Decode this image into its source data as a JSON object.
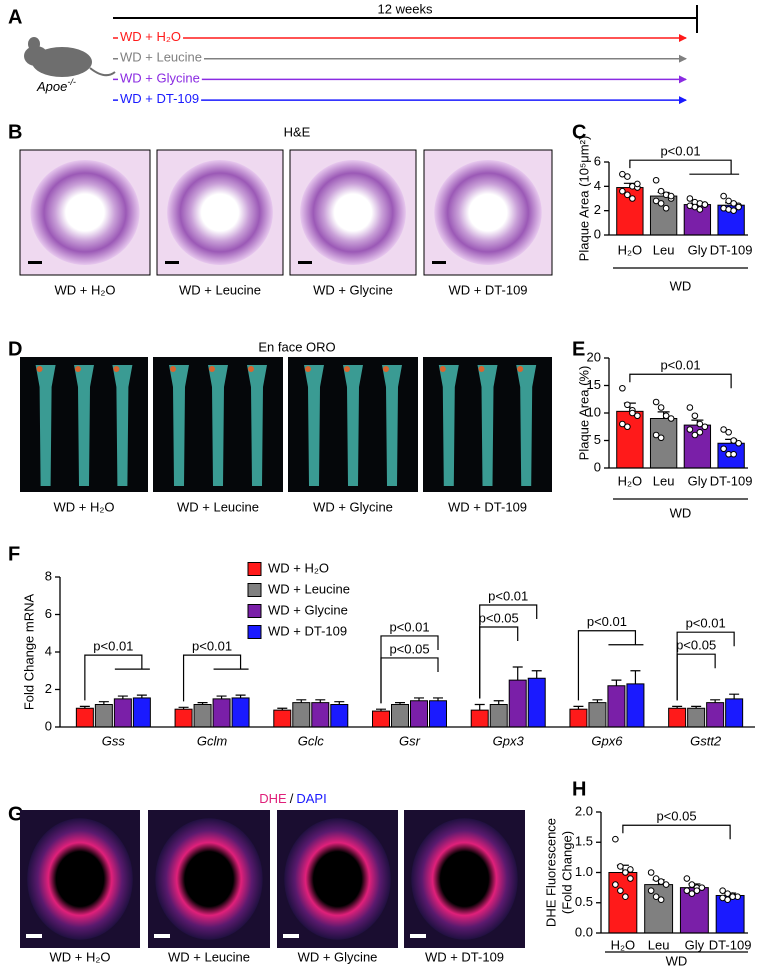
{
  "figure": {
    "panel_labels": [
      "A",
      "B",
      "C",
      "D",
      "E",
      "F",
      "G",
      "H"
    ],
    "timeline": {
      "duration": "12 weeks",
      "model": "Apoe",
      "model_sup": "-/-",
      "groups": [
        {
          "name": "WD + H₂O",
          "color": "#ff1a1a"
        },
        {
          "name": "WD + Leucine",
          "color": "#808080"
        },
        {
          "name": "WD + Glycine",
          "color": "#8a2be2"
        },
        {
          "name": "WD + DT-109",
          "color": "#1a1aff"
        }
      ]
    },
    "he": {
      "title": "H&E",
      "captions": [
        "WD + H₂O",
        "WD + Leucine",
        "WD + Glycine",
        "WD + DT-109"
      ]
    },
    "oro": {
      "title": "En face ORO",
      "captions": [
        "WD + H₂O",
        "WD + Leucine",
        "WD + Glycine",
        "WD + DT-109"
      ]
    },
    "dhe": {
      "title_parts": [
        "DHE",
        "/",
        "DAPI"
      ],
      "captions": [
        "WD + H₂O",
        "WD + Leucine",
        "WD + Glycine",
        "WD + DT-109"
      ]
    }
  },
  "chart_data": [
    {
      "type": "bar",
      "ylabel": [
        "Plaque Area (10⁵μm²)"
      ],
      "categories": [
        "H₂O",
        "Leu",
        "Gly",
        "DT-109"
      ],
      "group_label": "WD",
      "colors": [
        "#ff1a1a",
        "#808080",
        "#7a1fa8",
        "#1a1aff"
      ],
      "values": [
        3.9,
        3.2,
        2.5,
        2.45
      ],
      "errors": [
        0.35,
        0.3,
        0.15,
        0.2
      ],
      "points": [
        [
          5.0,
          4.8,
          4.0,
          3.9,
          3.6,
          3.3,
          3.0,
          4.2
        ],
        [
          4.5,
          3.6,
          3.3,
          3.0,
          2.8,
          2.6,
          2.2,
          3.2
        ],
        [
          3.0,
          2.7,
          2.6,
          2.5,
          2.4,
          2.3,
          2.1,
          2.5
        ],
        [
          3.2,
          2.8,
          2.6,
          2.4,
          2.2,
          2.1,
          2.0,
          2.3
        ]
      ],
      "ylim": [
        0,
        6
      ],
      "yticks": [
        0,
        2,
        4,
        6
      ],
      "brackets": [
        {
          "label": "p<0.01",
          "from": 0,
          "to": [
            2,
            3
          ]
        }
      ]
    },
    {
      "type": "bar",
      "ylabel": [
        "Plaque Area (%)"
      ],
      "categories": [
        "H₂O",
        "Leu",
        "Gly",
        "DT-109"
      ],
      "group_label": "WD",
      "colors": [
        "#ff1a1a",
        "#808080",
        "#7a1fa8",
        "#1a1aff"
      ],
      "values": [
        10.3,
        9.0,
        7.8,
        4.5
      ],
      "errors": [
        1.5,
        1.2,
        0.9,
        0.7
      ],
      "points": [
        [
          14.5,
          11.5,
          10.5,
          9.5,
          8.0,
          7.5,
          10.0
        ],
        [
          12.0,
          11.0,
          9.5,
          9.0,
          6.0,
          5.5
        ],
        [
          11.0,
          9.5,
          8.0,
          7.5,
          7.0,
          6.0,
          6.5
        ],
        [
          7.0,
          6.5,
          5.0,
          4.5,
          3.5,
          2.5,
          2.5
        ]
      ],
      "ylim": [
        0,
        20
      ],
      "yticks": [
        0,
        5,
        10,
        15,
        20
      ],
      "brackets": [
        {
          "label": "p<0.01",
          "from": 0,
          "to": [
            3
          ]
        }
      ]
    },
    {
      "type": "grouped-bar",
      "ylabel": [
        "Fold Change mRNA"
      ],
      "categories": [
        "Gss",
        "Gclm",
        "Gclc",
        "Gsr",
        "Gpx3",
        "Gpx6",
        "Gstt2"
      ],
      "ylim": [
        0,
        8
      ],
      "yticks": [
        0,
        2,
        4,
        6,
        8
      ],
      "series": [
        {
          "name": "WD + H₂O",
          "color": "#ff1a1a",
          "values": [
            1.0,
            0.95,
            0.9,
            0.85,
            0.9,
            0.95,
            1.0
          ],
          "errors": [
            0.1,
            0.1,
            0.1,
            0.1,
            0.3,
            0.15,
            0.1
          ]
        },
        {
          "name": "WD + Leucine",
          "color": "#808080",
          "values": [
            1.2,
            1.2,
            1.3,
            1.2,
            1.2,
            1.3,
            1.0
          ],
          "errors": [
            0.15,
            0.1,
            0.15,
            0.1,
            0.2,
            0.15,
            0.1
          ]
        },
        {
          "name": "WD + Glycine",
          "color": "#7a1fa8",
          "values": [
            1.5,
            1.5,
            1.3,
            1.4,
            2.5,
            2.2,
            1.3
          ],
          "errors": [
            0.15,
            0.15,
            0.15,
            0.15,
            0.7,
            0.3,
            0.15
          ]
        },
        {
          "name": "WD + DT-109",
          "color": "#1a1aff",
          "values": [
            1.55,
            1.55,
            1.2,
            1.4,
            2.6,
            2.3,
            1.5
          ],
          "errors": [
            0.15,
            0.15,
            0.15,
            0.15,
            0.4,
            0.7,
            0.25
          ]
        }
      ],
      "brackets": [
        {
          "category": 0,
          "label": "p<0.01",
          "from": 0,
          "to": [
            2,
            3
          ]
        },
        {
          "category": 1,
          "label": "p<0.01",
          "from": 0,
          "to": [
            2,
            3
          ]
        },
        {
          "category": 3,
          "label": "p<0.05",
          "from": 0,
          "to": [
            3
          ]
        },
        {
          "category": 3,
          "label": "p<0.01",
          "from": 0,
          "to": [
            3
          ]
        },
        {
          "category": 4,
          "label": "p<0.05",
          "from": 0,
          "to": [
            2
          ]
        },
        {
          "category": 4,
          "label": "p<0.01",
          "from": 0,
          "to": [
            3
          ]
        },
        {
          "category": 5,
          "label": "p<0.01",
          "from": 0,
          "to": [
            2,
            3
          ]
        },
        {
          "category": 6,
          "label": "p<0.05",
          "from": 0,
          "to": [
            2
          ]
        },
        {
          "category": 6,
          "label": "p<0.01",
          "from": 0,
          "to": [
            3
          ]
        }
      ]
    },
    {
      "type": "bar",
      "ylabel": [
        "DHE Fluorescence",
        "(Fold Change)"
      ],
      "categories": [
        "H₂O",
        "Leu",
        "Gly",
        "DT-109"
      ],
      "group_label": "WD",
      "colors": [
        "#ff1a1a",
        "#808080",
        "#7a1fa8",
        "#1a1aff"
      ],
      "values": [
        1.0,
        0.8,
        0.75,
        0.62
      ],
      "errors": [
        0.12,
        0.08,
        0.06,
        0.04
      ],
      "points": [
        [
          1.55,
          1.1,
          1.0,
          0.9,
          0.8,
          0.7,
          0.6,
          1.05
        ],
        [
          1.0,
          0.9,
          0.85,
          0.8,
          0.7,
          0.6,
          0.55
        ],
        [
          0.9,
          0.8,
          0.75,
          0.75,
          0.7,
          0.65,
          0.7
        ],
        [
          0.7,
          0.65,
          0.62,
          0.6,
          0.58,
          0.55,
          0.6
        ]
      ],
      "ylim": [
        0,
        2
      ],
      "yticks": [
        {
          "value": 0,
          "label": "0.0"
        },
        {
          "value": 0.5,
          "label": "0.5"
        },
        {
          "value": 1,
          "label": "1.0"
        },
        {
          "value": 1.5,
          "label": "1.5"
        },
        {
          "value": 2,
          "label": "2.0"
        }
      ],
      "brackets": [
        {
          "label": "p<0.05",
          "from": 0,
          "to": [
            3
          ]
        }
      ]
    }
  ]
}
